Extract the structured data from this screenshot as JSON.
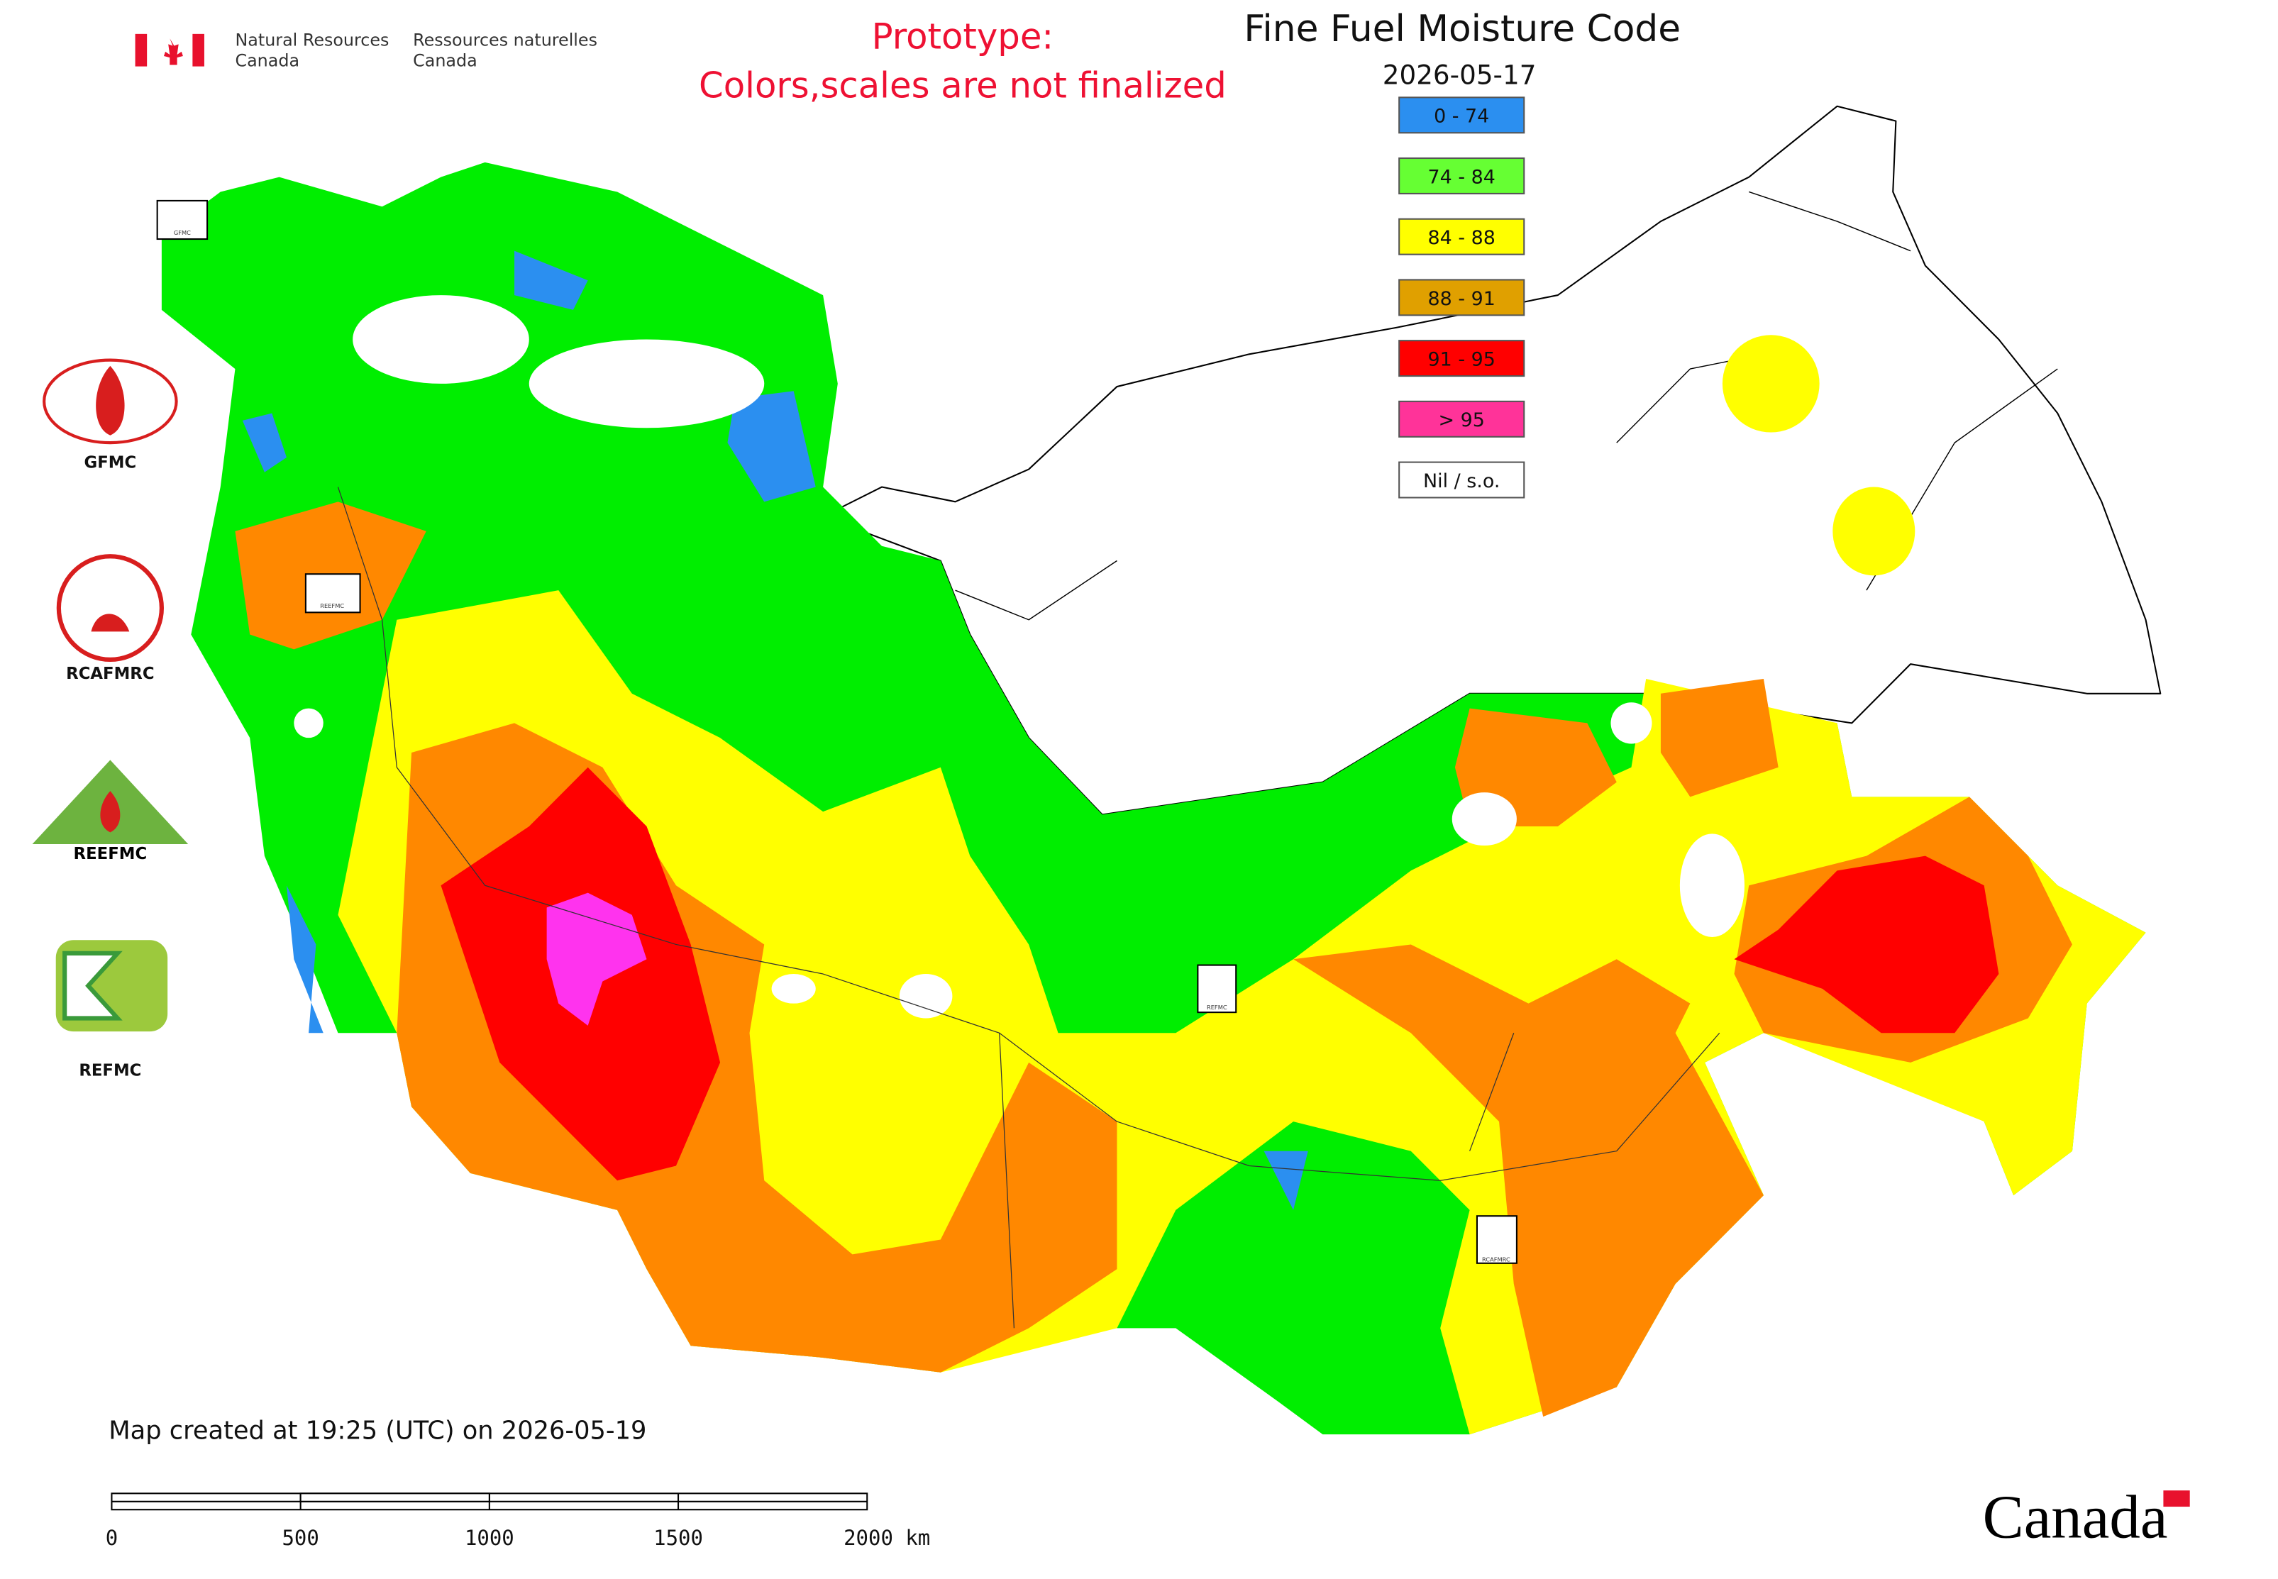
{
  "agency": {
    "en_line1": "Natural Resources",
    "en_line2": "Canada",
    "fr_line1": "Ressources naturelles",
    "fr_line2": "Canada"
  },
  "notice": {
    "line1": "Prototype:",
    "line2": "Colors,scales are not finalized"
  },
  "title": "Fine Fuel Moisture Code",
  "date": "2026-05-17",
  "legend": [
    {
      "label": "0 - 74",
      "color": "#2b8ff0"
    },
    {
      "label": "74 - 84",
      "color": "#66ff33"
    },
    {
      "label": "84 - 88",
      "color": "#ffff00"
    },
    {
      "label": "88 - 91",
      "color": "#e0a000"
    },
    {
      "label": "91 - 95",
      "color": "#ff0000"
    },
    {
      "label": "> 95",
      "color": "#ff3399"
    },
    {
      "label": "Nil / s.o.",
      "color": "#ffffff"
    }
  ],
  "logos": [
    "GFMC",
    "RCAFMRC",
    "REEFMC",
    "REFMC"
  ],
  "map_markers": [
    "GFMC",
    "REEFMC",
    "REFMC",
    "RCAFMRC"
  ],
  "footer": "Map created at 19:25 (UTC) on 2026-05-19",
  "scale_bar": [
    "0",
    "500",
    "1000",
    "1500",
    "2000 km"
  ],
  "wordmark": "Canada"
}
